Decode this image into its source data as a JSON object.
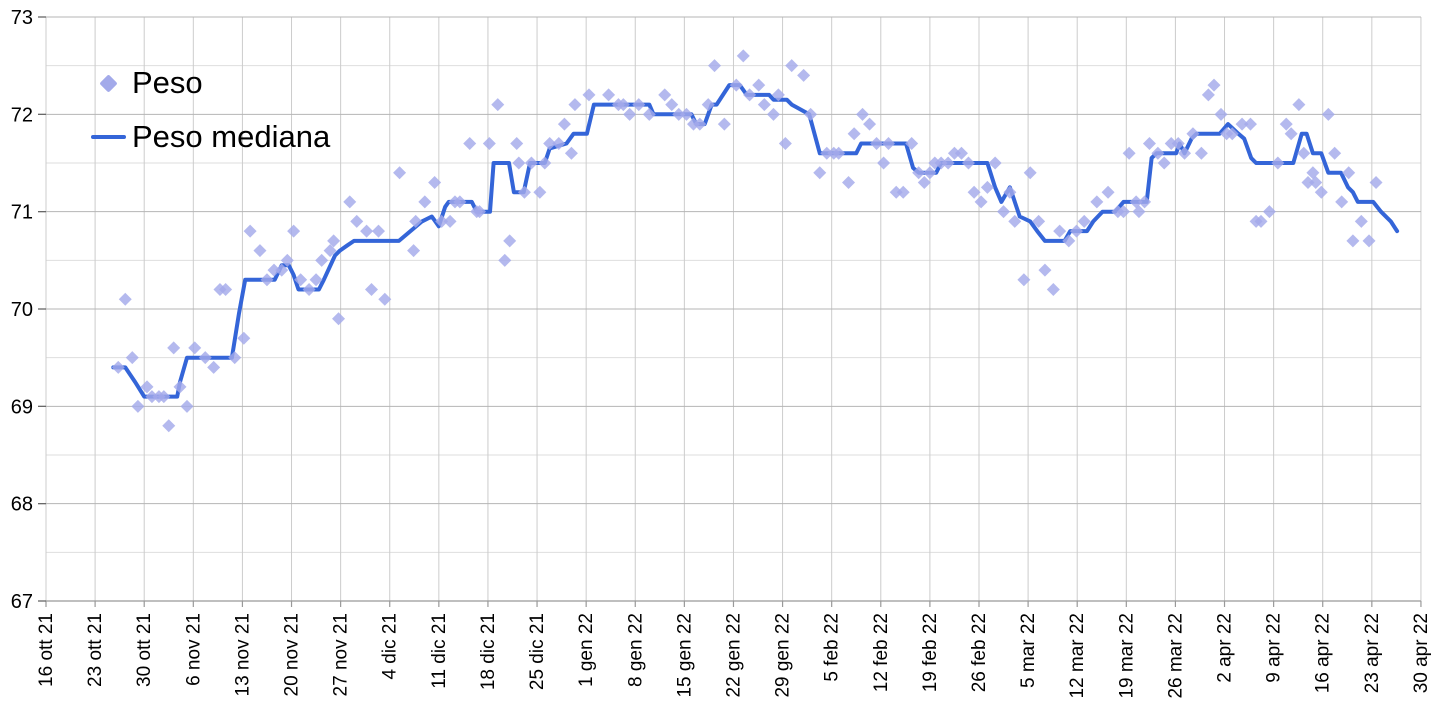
{
  "chart_data": {
    "type": "scatter",
    "title": "",
    "grid": true,
    "legend": {
      "position": "top-left-inside",
      "items": [
        {
          "label": "Peso",
          "marker": "diamond-icon",
          "color": "#a3aaea"
        },
        {
          "label": "Peso mediana",
          "marker": "line-icon",
          "color": "#3465d8"
        }
      ]
    },
    "colors": {
      "peso_points": "#a3aaea",
      "peso_mediana_line": "#3465d8",
      "grid_major": "#b5b5b5",
      "grid_minor": "#dedede",
      "grid_vertical": "#cccccc",
      "axis": "#999999",
      "tick": "#666666",
      "label_text": "#000000"
    },
    "x_axis": {
      "type": "date",
      "x_unit": "days since 16 ott 21",
      "range_days": [
        0,
        196
      ],
      "tick_spacing_days": 7,
      "tick_labels": [
        "16 ott 21",
        "23 ott 21",
        "30 ott 21",
        "6 nov 21",
        "13 nov 21",
        "20 nov 21",
        "27 nov 21",
        "4 dic 21",
        "11 dic 21",
        "18 dic 21",
        "25 dic 21",
        "1 gen 22",
        "8 gen 22",
        "15 gen 22",
        "22 gen 22",
        "29 gen 22",
        "5 feb 22",
        "12 feb 22",
        "19 feb 22",
        "26 feb 22",
        "5 mar 22",
        "12 mar 22",
        "19 mar 22",
        "26 mar 22",
        "2 apr 22",
        "9 apr 22",
        "16 apr 22",
        "23 apr 22",
        "30 apr 22"
      ]
    },
    "y_axis": {
      "min": 67,
      "max": 73,
      "major_step": 1,
      "minor_step": 0.5,
      "tick_labels": [
        "67",
        "68",
        "69",
        "70",
        "71",
        "72",
        "73"
      ]
    },
    "series": [
      {
        "name": "Peso",
        "type": "scatter",
        "marker": "diamond",
        "color": "#a3aaea",
        "points": [
          [
            10.3,
            69.4
          ],
          [
            11.3,
            70.1
          ],
          [
            12.3,
            69.5
          ],
          [
            13.1,
            69.0
          ],
          [
            14.4,
            69.2
          ],
          [
            15.1,
            69.1
          ],
          [
            16.1,
            69.1
          ],
          [
            16.8,
            69.1
          ],
          [
            17.5,
            68.8
          ],
          [
            18.2,
            69.6
          ],
          [
            19.1,
            69.2
          ],
          [
            20.1,
            69.0
          ],
          [
            21.2,
            69.6
          ],
          [
            22.7,
            69.5
          ],
          [
            23.9,
            69.4
          ],
          [
            24.8,
            70.2
          ],
          [
            25.6,
            70.2
          ],
          [
            26.9,
            69.5
          ],
          [
            28.2,
            69.7
          ],
          [
            29.1,
            70.8
          ],
          [
            30.5,
            70.6
          ],
          [
            31.5,
            70.3
          ],
          [
            32.5,
            70.4
          ],
          [
            33.6,
            70.4
          ],
          [
            34.4,
            70.5
          ],
          [
            35.3,
            70.8
          ],
          [
            36.3,
            70.3
          ],
          [
            37.5,
            70.2
          ],
          [
            38.5,
            70.3
          ],
          [
            39.3,
            70.5
          ],
          [
            40.5,
            70.6
          ],
          [
            41.0,
            70.7
          ],
          [
            41.7,
            69.9
          ],
          [
            43.3,
            71.1
          ],
          [
            44.3,
            70.9
          ],
          [
            45.7,
            70.8
          ],
          [
            46.4,
            70.2
          ],
          [
            47.4,
            70.8
          ],
          [
            48.3,
            70.1
          ],
          [
            50.4,
            71.4
          ],
          [
            52.4,
            70.6
          ],
          [
            52.7,
            70.9
          ],
          [
            54.0,
            71.1
          ],
          [
            55.4,
            71.3
          ],
          [
            56.4,
            70.9
          ],
          [
            57.6,
            70.9
          ],
          [
            58.3,
            71.1
          ],
          [
            59.0,
            71.1
          ],
          [
            60.4,
            71.7
          ],
          [
            61.4,
            71.0
          ],
          [
            61.8,
            71.0
          ],
          [
            63.2,
            71.7
          ],
          [
            64.4,
            72.1
          ],
          [
            65.4,
            70.5
          ],
          [
            66.1,
            70.7
          ],
          [
            67.1,
            71.7
          ],
          [
            67.4,
            71.5
          ],
          [
            68.2,
            71.2
          ],
          [
            69.2,
            71.5
          ],
          [
            70.4,
            71.2
          ],
          [
            71.1,
            71.5
          ],
          [
            71.8,
            71.7
          ],
          [
            73.1,
            71.7
          ],
          [
            73.9,
            71.9
          ],
          [
            74.9,
            71.6
          ],
          [
            75.4,
            72.1
          ],
          [
            77.4,
            72.2
          ],
          [
            80.2,
            72.2
          ],
          [
            81.6,
            72.1
          ],
          [
            82.3,
            72.1
          ],
          [
            83.2,
            72.0
          ],
          [
            84.5,
            72.1
          ],
          [
            86.0,
            72.0
          ],
          [
            88.2,
            72.2
          ],
          [
            89.2,
            72.1
          ],
          [
            90.2,
            72.0
          ],
          [
            91.3,
            72.0
          ],
          [
            92.3,
            71.9
          ],
          [
            93.2,
            71.9
          ],
          [
            94.4,
            72.1
          ],
          [
            95.3,
            72.5
          ],
          [
            96.7,
            71.9
          ],
          [
            98.4,
            72.3
          ],
          [
            99.4,
            72.6
          ],
          [
            100.3,
            72.2
          ],
          [
            101.6,
            72.3
          ],
          [
            102.4,
            72.1
          ],
          [
            103.7,
            72.0
          ],
          [
            104.4,
            72.2
          ],
          [
            105.4,
            71.7
          ],
          [
            106.3,
            72.5
          ],
          [
            108.0,
            72.4
          ],
          [
            109.0,
            72.0
          ],
          [
            110.3,
            71.4
          ],
          [
            111.3,
            71.6
          ],
          [
            112.3,
            71.6
          ],
          [
            113.0,
            71.6
          ],
          [
            114.4,
            71.3
          ],
          [
            115.2,
            71.8
          ],
          [
            116.4,
            72.0
          ],
          [
            117.4,
            71.9
          ],
          [
            118.4,
            71.7
          ],
          [
            119.4,
            71.5
          ],
          [
            120.1,
            71.7
          ],
          [
            121.2,
            71.2
          ],
          [
            122.2,
            71.2
          ],
          [
            123.4,
            71.7
          ],
          [
            124.4,
            71.4
          ],
          [
            125.2,
            71.3
          ],
          [
            126.0,
            71.4
          ],
          [
            126.7,
            71.5
          ],
          [
            127.6,
            71.5
          ],
          [
            128.6,
            71.5
          ],
          [
            129.5,
            71.6
          ],
          [
            130.5,
            71.6
          ],
          [
            131.5,
            71.5
          ],
          [
            132.3,
            71.2
          ],
          [
            133.3,
            71.1
          ],
          [
            134.2,
            71.25
          ],
          [
            135.3,
            71.5
          ],
          [
            136.5,
            71.0
          ],
          [
            137.4,
            71.2
          ],
          [
            138.1,
            70.9
          ],
          [
            139.4,
            70.3
          ],
          [
            140.3,
            71.4
          ],
          [
            141.5,
            70.9
          ],
          [
            142.4,
            70.4
          ],
          [
            143.6,
            70.2
          ],
          [
            144.5,
            70.8
          ],
          [
            145.8,
            70.7
          ],
          [
            146.9,
            70.8
          ],
          [
            148.0,
            70.9
          ],
          [
            149.8,
            71.1
          ],
          [
            151.4,
            71.2
          ],
          [
            152.8,
            71.0
          ],
          [
            153.6,
            71.0
          ],
          [
            154.4,
            71.6
          ],
          [
            155.4,
            71.1
          ],
          [
            155.8,
            71.0
          ],
          [
            156.6,
            71.1
          ],
          [
            157.3,
            71.7
          ],
          [
            158.5,
            71.6
          ],
          [
            159.4,
            71.5
          ],
          [
            160.4,
            71.7
          ],
          [
            161.4,
            71.7
          ],
          [
            162.3,
            71.6
          ],
          [
            163.5,
            71.8
          ],
          [
            164.7,
            71.6
          ],
          [
            165.7,
            72.2
          ],
          [
            166.5,
            72.3
          ],
          [
            167.5,
            72.0
          ],
          [
            168.3,
            71.8
          ],
          [
            169.1,
            71.8
          ],
          [
            170.5,
            71.9
          ],
          [
            171.7,
            71.9
          ],
          [
            172.5,
            70.9
          ],
          [
            173.2,
            70.9
          ],
          [
            174.4,
            71.0
          ],
          [
            175.6,
            71.5
          ],
          [
            176.8,
            71.9
          ],
          [
            177.5,
            71.8
          ],
          [
            178.6,
            72.1
          ],
          [
            179.3,
            71.6
          ],
          [
            179.9,
            71.3
          ],
          [
            180.6,
            71.4
          ],
          [
            181.0,
            71.3
          ],
          [
            181.8,
            71.2
          ],
          [
            182.8,
            72.0
          ],
          [
            183.7,
            71.6
          ],
          [
            184.7,
            71.1
          ],
          [
            185.7,
            71.4
          ],
          [
            186.3,
            70.7
          ],
          [
            187.5,
            70.9
          ],
          [
            188.6,
            70.7
          ],
          [
            189.6,
            71.3
          ]
        ]
      },
      {
        "name": "Peso mediana",
        "type": "line",
        "color": "#3465d8",
        "points": [
          [
            9.6,
            69.4
          ],
          [
            11.3,
            69.4
          ],
          [
            12.7,
            69.25
          ],
          [
            14.0,
            69.1
          ],
          [
            18.7,
            69.1
          ],
          [
            19.1,
            69.25
          ],
          [
            20.1,
            69.5
          ],
          [
            26.5,
            69.5
          ],
          [
            27.5,
            69.95
          ],
          [
            28.4,
            70.3
          ],
          [
            32.6,
            70.3
          ],
          [
            33.6,
            70.45
          ],
          [
            34.6,
            70.45
          ],
          [
            35.3,
            70.35
          ],
          [
            36.0,
            70.2
          ],
          [
            38.9,
            70.2
          ],
          [
            39.6,
            70.3
          ],
          [
            41.2,
            70.55
          ],
          [
            41.9,
            70.6
          ],
          [
            42.9,
            70.65
          ],
          [
            43.9,
            70.7
          ],
          [
            50.3,
            70.7
          ],
          [
            53.6,
            70.9
          ],
          [
            55.0,
            70.95
          ],
          [
            56.0,
            70.85
          ],
          [
            56.9,
            71.05
          ],
          [
            57.4,
            71.1
          ],
          [
            60.7,
            71.1
          ],
          [
            61.4,
            71.0
          ],
          [
            63.3,
            71.0
          ],
          [
            63.8,
            71.5
          ],
          [
            66.0,
            71.5
          ],
          [
            66.7,
            71.2
          ],
          [
            68.1,
            71.2
          ],
          [
            69.0,
            71.5
          ],
          [
            71.1,
            71.5
          ],
          [
            71.8,
            71.65
          ],
          [
            74.2,
            71.7
          ],
          [
            75.2,
            71.8
          ],
          [
            77.1,
            71.8
          ],
          [
            78.1,
            72.1
          ],
          [
            86.0,
            72.1
          ],
          [
            86.6,
            72.0
          ],
          [
            92.0,
            72.0
          ],
          [
            92.7,
            71.9
          ],
          [
            93.9,
            71.9
          ],
          [
            94.9,
            72.1
          ],
          [
            95.6,
            72.1
          ],
          [
            97.4,
            72.3
          ],
          [
            98.9,
            72.3
          ],
          [
            99.9,
            72.2
          ],
          [
            103.1,
            72.2
          ],
          [
            103.7,
            72.15
          ],
          [
            105.6,
            72.15
          ],
          [
            106.3,
            72.1
          ],
          [
            108.8,
            72.0
          ],
          [
            110.3,
            71.6
          ],
          [
            115.5,
            71.6
          ],
          [
            116.2,
            71.7
          ],
          [
            122.6,
            71.7
          ],
          [
            123.6,
            71.45
          ],
          [
            124.4,
            71.4
          ],
          [
            126.9,
            71.4
          ],
          [
            127.6,
            71.5
          ],
          [
            134.2,
            71.5
          ],
          [
            135.3,
            71.25
          ],
          [
            136.2,
            71.1
          ],
          [
            137.4,
            71.25
          ],
          [
            138.8,
            70.95
          ],
          [
            140.3,
            70.9
          ],
          [
            141.3,
            70.8
          ],
          [
            142.4,
            70.7
          ],
          [
            145.2,
            70.7
          ],
          [
            146.0,
            70.8
          ],
          [
            148.4,
            70.8
          ],
          [
            149.3,
            70.9
          ],
          [
            150.6,
            71.0
          ],
          [
            152.4,
            71.0
          ],
          [
            153.6,
            71.1
          ],
          [
            156.9,
            71.1
          ],
          [
            157.6,
            71.55
          ],
          [
            158.3,
            71.6
          ],
          [
            161.1,
            71.6
          ],
          [
            161.6,
            71.7
          ],
          [
            162.3,
            71.6
          ],
          [
            163.3,
            71.75
          ],
          [
            164.0,
            71.8
          ],
          [
            167.3,
            71.8
          ],
          [
            168.5,
            71.9
          ],
          [
            170.0,
            71.8
          ],
          [
            170.8,
            71.75
          ],
          [
            171.8,
            71.55
          ],
          [
            172.5,
            71.5
          ],
          [
            177.8,
            71.5
          ],
          [
            179.0,
            71.8
          ],
          [
            179.7,
            71.8
          ],
          [
            180.6,
            71.6
          ],
          [
            181.8,
            71.6
          ],
          [
            182.8,
            71.4
          ],
          [
            184.6,
            71.4
          ],
          [
            185.6,
            71.25
          ],
          [
            186.3,
            71.2
          ],
          [
            187.0,
            71.1
          ],
          [
            189.2,
            71.1
          ],
          [
            190.3,
            71.0
          ],
          [
            191.7,
            70.9
          ],
          [
            192.6,
            70.8
          ]
        ]
      }
    ]
  }
}
